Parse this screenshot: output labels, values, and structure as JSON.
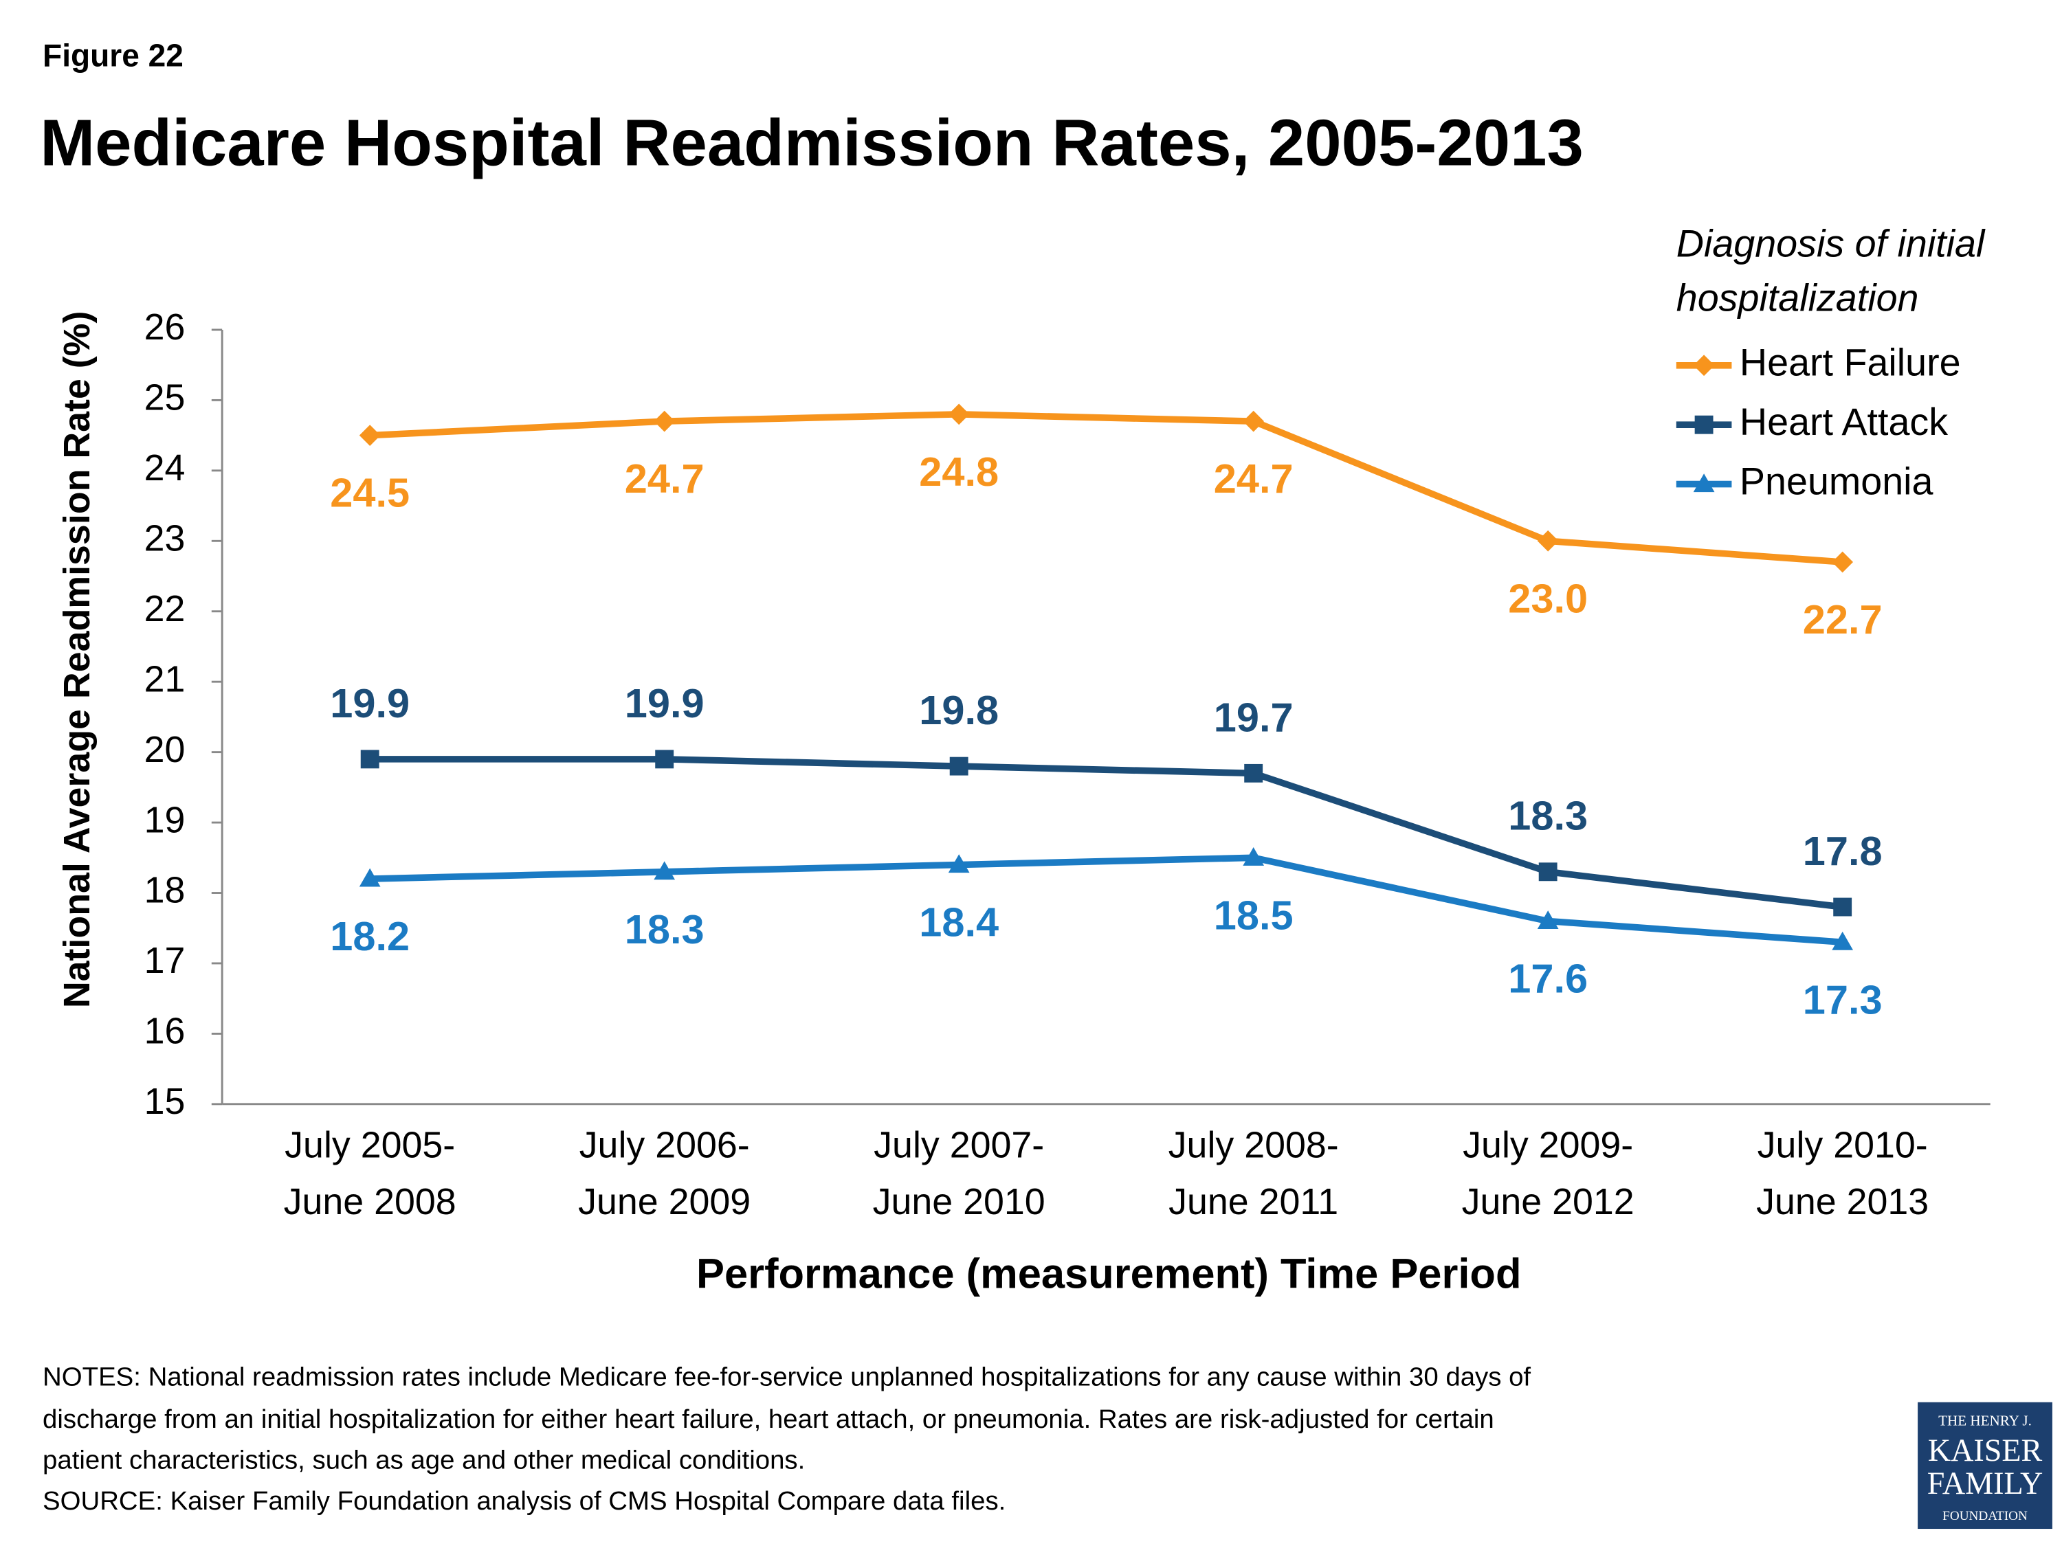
{
  "chart_data": {
    "type": "line",
    "figure_label": "Figure 22",
    "title": "Medicare Hospital Readmission Rates, 2005-2013",
    "y_label": "National Average Readmission Rate (%)",
    "x_label": "Performance (measurement) Time Period",
    "legend_title": [
      "Diagnosis of initial",
      "hospitalization"
    ],
    "legend_position": "top-right",
    "categories": [
      [
        "July 2005-",
        "June 2008"
      ],
      [
        "July 2006-",
        "June 2009"
      ],
      [
        "July 2007-",
        "June 2010"
      ],
      [
        "July 2008-",
        "June 2011"
      ],
      [
        "July 2009-",
        "June 2012"
      ],
      [
        "July 2010-",
        "June 2013"
      ]
    ],
    "ylim": [
      15,
      26
    ],
    "yticks": [
      15,
      16,
      17,
      18,
      19,
      20,
      21,
      22,
      23,
      24,
      25,
      26
    ],
    "grid": false,
    "series": [
      {
        "name": "Heart Failure",
        "color": "#f7941d",
        "marker": "diamond",
        "values": [
          24.5,
          24.7,
          24.8,
          24.7,
          23,
          22.7
        ],
        "value_labels": [
          "24.5",
          "24.7",
          "24.8",
          "24.7",
          "23.0",
          "22.7"
        ]
      },
      {
        "name": "Heart Attack",
        "color": "#1c4d78",
        "marker": "square",
        "values": [
          19.9,
          19.9,
          19.8,
          19.7,
          18.3,
          17.8
        ],
        "value_labels": [
          "19.9",
          "19.9",
          "19.8",
          "19.7",
          "18.3",
          "17.8"
        ]
      },
      {
        "name": "Pneumonia",
        "color": "#1b7bc4",
        "marker": "triangle",
        "values": [
          18.2,
          18.3,
          18.4,
          18.5,
          17.6,
          17.3
        ],
        "value_labels": [
          "18.2",
          "18.3",
          "18.4",
          "18.5",
          "17.6",
          "17.3"
        ]
      }
    ]
  },
  "notes": [
    "NOTES: National readmission rates include Medicare fee-for-service unplanned hospitalizations for any cause within 30 days of",
    "discharge from an initial hospitalization for either heart failure, heart attach, or pneumonia. Rates are risk-adjusted for certain",
    "patient characteristics, such as age and other medical conditions.",
    "SOURCE: Kaiser Family Foundation analysis of CMS Hospital Compare data files."
  ],
  "logo": [
    "THE HENRY J.",
    "KAISER",
    "FAMILY",
    "FOUNDATION"
  ]
}
